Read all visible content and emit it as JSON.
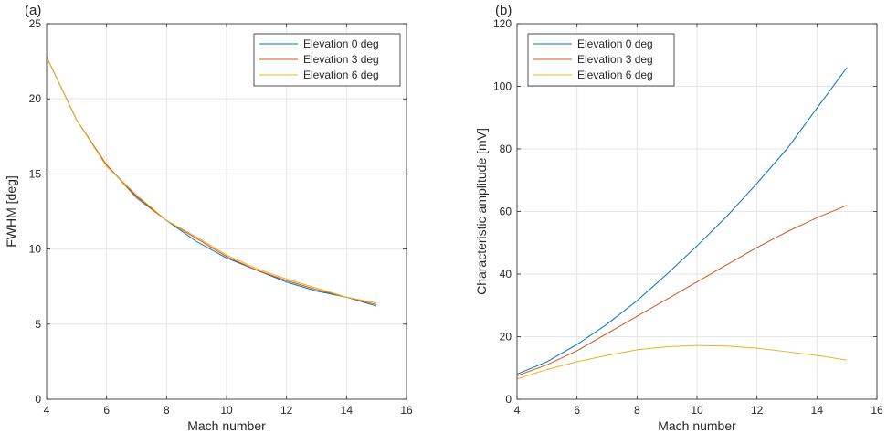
{
  "chart_data": [
    {
      "type": "line",
      "panel_label": "(a)",
      "title": "",
      "xlabel": "Mach number",
      "ylabel": "FWHM [deg]",
      "xlim": [
        4,
        16
      ],
      "ylim": [
        0,
        25
      ],
      "xticks": [
        "4",
        "6",
        "8",
        "10",
        "12",
        "14",
        "16"
      ],
      "yticks": [
        "0",
        "5",
        "10",
        "15",
        "20",
        "25"
      ],
      "grid": true,
      "legend_position": "top-right",
      "x": [
        4,
        5,
        6,
        7,
        8,
        9,
        10,
        11,
        12,
        13,
        14,
        15
      ],
      "series": [
        {
          "name": "Elevation 0 deg",
          "color": "#0072BD",
          "values": [
            22.8,
            18.6,
            15.6,
            13.5,
            11.9,
            10.5,
            9.4,
            8.6,
            7.8,
            7.2,
            6.8,
            6.2
          ]
        },
        {
          "name": "Elevation 3 deg",
          "color": "#D95319",
          "values": [
            22.8,
            18.6,
            15.6,
            13.4,
            11.9,
            10.7,
            9.5,
            8.6,
            7.9,
            7.3,
            6.8,
            6.3
          ]
        },
        {
          "name": "Elevation 6 deg",
          "color": "#EDB120",
          "values": [
            22.8,
            18.6,
            15.5,
            13.6,
            11.9,
            10.8,
            9.6,
            8.7,
            8.0,
            7.4,
            6.8,
            6.4
          ]
        }
      ]
    },
    {
      "type": "line",
      "panel_label": "(b)",
      "title": "",
      "xlabel": "Mach number",
      "ylabel": "Characteristic amplitude [mV]",
      "xlim": [
        4,
        16
      ],
      "ylim": [
        0,
        120
      ],
      "xticks": [
        "4",
        "6",
        "8",
        "10",
        "12",
        "14",
        "16"
      ],
      "yticks": [
        "0",
        "20",
        "40",
        "60",
        "80",
        "100",
        "120"
      ],
      "grid": true,
      "legend_position": "top-left",
      "x": [
        4,
        5,
        6,
        7,
        8,
        9,
        10,
        11,
        12,
        13,
        14,
        15
      ],
      "series": [
        {
          "name": "Elevation 0 deg",
          "color": "#0072BD",
          "values": [
            8,
            12,
            17.5,
            24,
            31.5,
            40,
            49,
            58.5,
            69,
            80,
            93,
            106
          ]
        },
        {
          "name": "Elevation 3 deg",
          "color": "#D95319",
          "values": [
            7.5,
            11,
            15.5,
            21,
            26.5,
            32,
            37.5,
            43,
            48.5,
            53.5,
            58,
            62
          ]
        },
        {
          "name": "Elevation 6 deg",
          "color": "#EDB120",
          "values": [
            6.5,
            9.5,
            12,
            14,
            15.8,
            16.8,
            17.2,
            17,
            16.3,
            15.2,
            14,
            12.5
          ]
        }
      ]
    }
  ]
}
